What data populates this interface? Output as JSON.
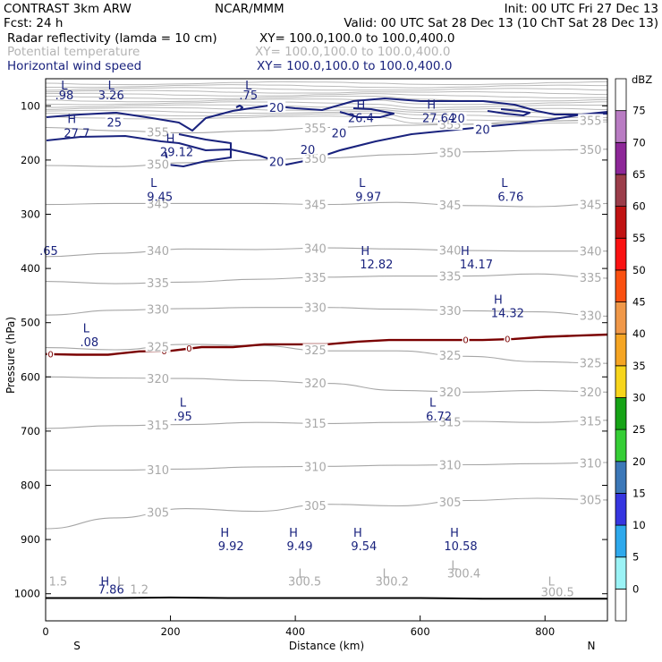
{
  "header": {
    "model": "CONTRAST  3km ARW",
    "center": "NCAR/MMM",
    "init": "Init: 00 UTC Fri 27 Dec 13",
    "fcst": "Fcst:   24 h",
    "valid": "Valid: 00 UTC Sat 28 Dec 13 (10 ChT Sat 28 Dec 13)",
    "fields": [
      {
        "name": "Radar reflectivity (lamda = 10 cm)",
        "xy": "XY= 100.0,100.0 to 100.0,400.0",
        "color": "#000000"
      },
      {
        "name": "Potential temperature",
        "xy": "XY= 100.0,100.0 to 100.0,400.0",
        "color": "#b4b4b4"
      },
      {
        "name": "Horizontal wind speed",
        "xy": "XY= 100.0,100.0 to 100.0,400.0",
        "color": "#1a237e"
      }
    ]
  },
  "chart_data": {
    "type": "cross-section contour",
    "xlabel": "Distance (km)",
    "ylabel": "Pressure (hPa)",
    "xlim": [
      0,
      900
    ],
    "ylim": [
      1050,
      50
    ],
    "xticks": [
      0,
      200,
      400,
      600,
      800
    ],
    "yticks": [
      100,
      200,
      300,
      400,
      500,
      600,
      700,
      800,
      900,
      1000
    ],
    "endpoints": {
      "left": "S",
      "right": "N"
    },
    "colorbar": {
      "label": "dBZ",
      "levels": [
        "0",
        "5",
        "10",
        "15",
        "20",
        "25",
        "30",
        "35",
        "40",
        "45",
        "50",
        "55",
        "60",
        "65",
        "70",
        "75"
      ],
      "colors": [
        "#ffffff",
        "#9bf3f6",
        "#2ea9ec",
        "#3636e0",
        "#3c78b8",
        "#36ce36",
        "#16a316",
        "#f7d51c",
        "#f5a523",
        "#f09849",
        "#fa5011",
        "#fa1212",
        "#c01313",
        "#9b3d4a",
        "#8d2798",
        "#b97cc3",
        "#ffffff"
      ]
    },
    "theta_levels": [
      {
        "value": 305,
        "label": "305",
        "p": [
          880,
          860,
          843,
          848,
          835,
          838,
          828,
          824,
          827
        ]
      },
      {
        "value": 310,
        "label": "310",
        "p": [
          772,
          772,
          770,
          766,
          765,
          763,
          762,
          760,
          758
        ]
      },
      {
        "value": 315,
        "label": "315",
        "p": [
          695,
          690,
          688,
          684,
          686,
          684,
          682,
          684,
          680
        ]
      },
      {
        "value": 320,
        "label": "320",
        "p": [
          600,
          602,
          603,
          607,
          612,
          625,
          628,
          625,
          628
        ]
      },
      {
        "value": 325,
        "label": "325",
        "p": [
          546,
          550,
          540,
          542,
          552,
          552,
          562,
          572,
          575
        ]
      },
      {
        "value": 330,
        "label": "330",
        "p": [
          486,
          477,
          474,
          472,
          472,
          475,
          478,
          480,
          488
        ]
      },
      {
        "value": 335,
        "label": "335",
        "p": [
          424,
          428,
          425,
          420,
          416,
          414,
          414,
          410,
          418
        ]
      },
      {
        "value": 340,
        "label": "340",
        "p": [
          378,
          372,
          364,
          365,
          362,
          364,
          367,
          368,
          368
        ]
      },
      {
        "value": 345,
        "label": "345",
        "p": [
          282,
          280,
          280,
          280,
          282,
          278,
          284,
          286,
          280
        ]
      },
      {
        "value": 350,
        "label": "350",
        "p": [
          210,
          212,
          205,
          200,
          196,
          190,
          185,
          182,
          180
        ]
      },
      {
        "value": 355,
        "label": "355",
        "p": [
          140,
          146,
          150,
          146,
          140,
          136,
          134,
          128,
          126
        ]
      }
    ],
    "wind_speed_labels": [
      {
        "label": "25",
        "x": 110,
        "p": 130
      },
      {
        "label": "20",
        "x": 370,
        "p": 103
      },
      {
        "label": "20",
        "x": 660,
        "p": 123
      },
      {
        "label": "20",
        "x": 700,
        "p": 143
      },
      {
        "label": "20",
        "x": 470,
        "p": 150
      },
      {
        "label": "20",
        "x": 420,
        "p": 180
      },
      {
        "label": "20",
        "x": 370,
        "p": 203
      }
    ],
    "freezing_level": {
      "label": "0",
      "p": [
        558,
        559,
        559,
        553,
        552,
        545,
        545,
        540,
        540,
        540,
        535,
        532,
        532,
        532,
        532,
        530,
        526,
        524,
        522
      ]
    },
    "extrema_labels": [
      {
        "text": "L",
        "x": 30,
        "p": 70
      },
      {
        "text": ".98",
        "x": 30,
        "p": 88
      },
      {
        "text": "L",
        "x": 105,
        "p": 70
      },
      {
        "text": "3.26",
        "x": 105,
        "p": 88
      },
      {
        "text": "L",
        "x": 325,
        "p": 70
      },
      {
        "text": ".75",
        "x": 325,
        "p": 88
      },
      {
        "text": "H",
        "x": 42,
        "p": 132
      },
      {
        "text": "27.7",
        "x": 50,
        "p": 158
      },
      {
        "text": "H",
        "x": 200,
        "p": 168
      },
      {
        "text": "29.12",
        "x": 210,
        "p": 193
      },
      {
        "text": "H",
        "x": 505,
        "p": 105
      },
      {
        "text": "26.4",
        "x": 505,
        "p": 130
      },
      {
        "text": "H",
        "x": 618,
        "p": 105
      },
      {
        "text": "27.64",
        "x": 630,
        "p": 130
      },
      {
        "text": "L",
        "x": 173,
        "p": 250
      },
      {
        "text": "9.45",
        "x": 183,
        "p": 275
      },
      {
        "text": "L",
        "x": 507,
        "p": 250
      },
      {
        "text": "9.97",
        "x": 517,
        "p": 275
      },
      {
        "text": "L",
        "x": 735,
        "p": 250
      },
      {
        "text": "6.76",
        "x": 745,
        "p": 275
      },
      {
        "text": ".65",
        "x": 5,
        "p": 375
      },
      {
        "text": "H",
        "x": 512,
        "p": 375
      },
      {
        "text": "12.82",
        "x": 530,
        "p": 400
      },
      {
        "text": "H",
        "x": 672,
        "p": 375
      },
      {
        "text": "14.17",
        "x": 690,
        "p": 400
      },
      {
        "text": "H",
        "x": 725,
        "p": 465
      },
      {
        "text": "14.32",
        "x": 740,
        "p": 490
      },
      {
        "text": "L",
        "x": 65,
        "p": 518
      },
      {
        "text": ".08",
        "x": 70,
        "p": 543
      },
      {
        "text": "L",
        "x": 220,
        "p": 655
      },
      {
        "text": ".95",
        "x": 220,
        "p": 680
      },
      {
        "text": "L",
        "x": 620,
        "p": 655
      },
      {
        "text": "6.72",
        "x": 630,
        "p": 680
      },
      {
        "text": "H",
        "x": 287,
        "p": 895
      },
      {
        "text": "9.92",
        "x": 297,
        "p": 920
      },
      {
        "text": "H",
        "x": 397,
        "p": 895
      },
      {
        "text": "9.49",
        "x": 407,
        "p": 920
      },
      {
        "text": "H",
        "x": 500,
        "p": 895
      },
      {
        "text": "9.54",
        "x": 510,
        "p": 920
      },
      {
        "text": "H",
        "x": 655,
        "p": 895
      },
      {
        "text": "10.58",
        "x": 665,
        "p": 920
      },
      {
        "text": "H",
        "x": 95,
        "p": 985
      },
      {
        "text": "7.86",
        "x": 105,
        "p": 1000
      }
    ],
    "theta_extrema_labels": [
      {
        "text": "L",
        "x": 120,
        "p": 985
      },
      {
        "text": "1.5",
        "x": 20,
        "p": 985
      },
      {
        "text": "1.2",
        "x": 150,
        "p": 1000
      },
      {
        "text": "L",
        "x": 410,
        "p": 970
      },
      {
        "text": "300.5",
        "x": 415,
        "p": 985
      },
      {
        "text": "L",
        "x": 545,
        "p": 970
      },
      {
        "text": "300.2",
        "x": 555,
        "p": 985
      },
      {
        "text": "L",
        "x": 655,
        "p": 955
      },
      {
        "text": "300.4",
        "x": 670,
        "p": 970
      },
      {
        "text": "L",
        "x": 810,
        "p": 985
      },
      {
        "text": "300.5",
        "x": 820,
        "p": 1005
      }
    ],
    "surface_p": [
      1008,
      1008,
      1007,
      1008,
      1008,
      1008,
      1008,
      1009,
      1009,
      1009
    ]
  }
}
